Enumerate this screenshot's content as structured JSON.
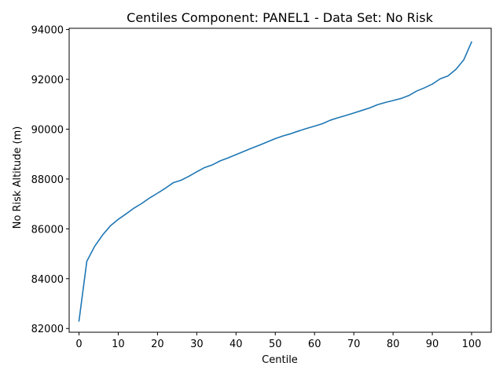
{
  "chart_data": {
    "type": "line",
    "title": "Centiles Component: PANEL1 - Data Set: No Risk",
    "xlabel": "Centile",
    "ylabel": "No Risk Altitude (m)",
    "xlim": [
      -2.5,
      105
    ],
    "ylim": [
      81850,
      94050
    ],
    "xticks": [
      0,
      10,
      20,
      30,
      40,
      50,
      60,
      70,
      80,
      90,
      100
    ],
    "yticks": [
      82000,
      84000,
      86000,
      88000,
      90000,
      92000,
      94000
    ],
    "grid": false,
    "line_color": "#1f77b4",
    "series": [
      {
        "x": [
          0,
          2,
          4,
          6,
          8,
          10,
          12,
          14,
          16,
          18,
          20,
          22,
          24,
          26,
          28,
          30,
          32,
          34,
          36,
          38,
          40,
          42,
          44,
          46,
          48,
          50,
          52,
          54,
          56,
          58,
          60,
          62,
          64,
          66,
          68,
          70,
          72,
          74,
          76,
          78,
          80,
          82,
          84,
          86,
          88,
          90,
          92,
          94,
          96,
          98,
          100
        ],
        "values": [
          82300,
          84700,
          85300,
          85750,
          86120,
          86380,
          86600,
          86830,
          87020,
          87240,
          87430,
          87630,
          87850,
          87950,
          88110,
          88290,
          88460,
          88570,
          88730,
          88850,
          88980,
          89110,
          89240,
          89360,
          89490,
          89620,
          89730,
          89820,
          89930,
          90030,
          90120,
          90220,
          90360,
          90460,
          90550,
          90650,
          90750,
          90850,
          90980,
          91070,
          91150,
          91230,
          91350,
          91530,
          91660,
          91810,
          92020,
          92140,
          92400,
          92780,
          93500
        ]
      }
    ]
  }
}
